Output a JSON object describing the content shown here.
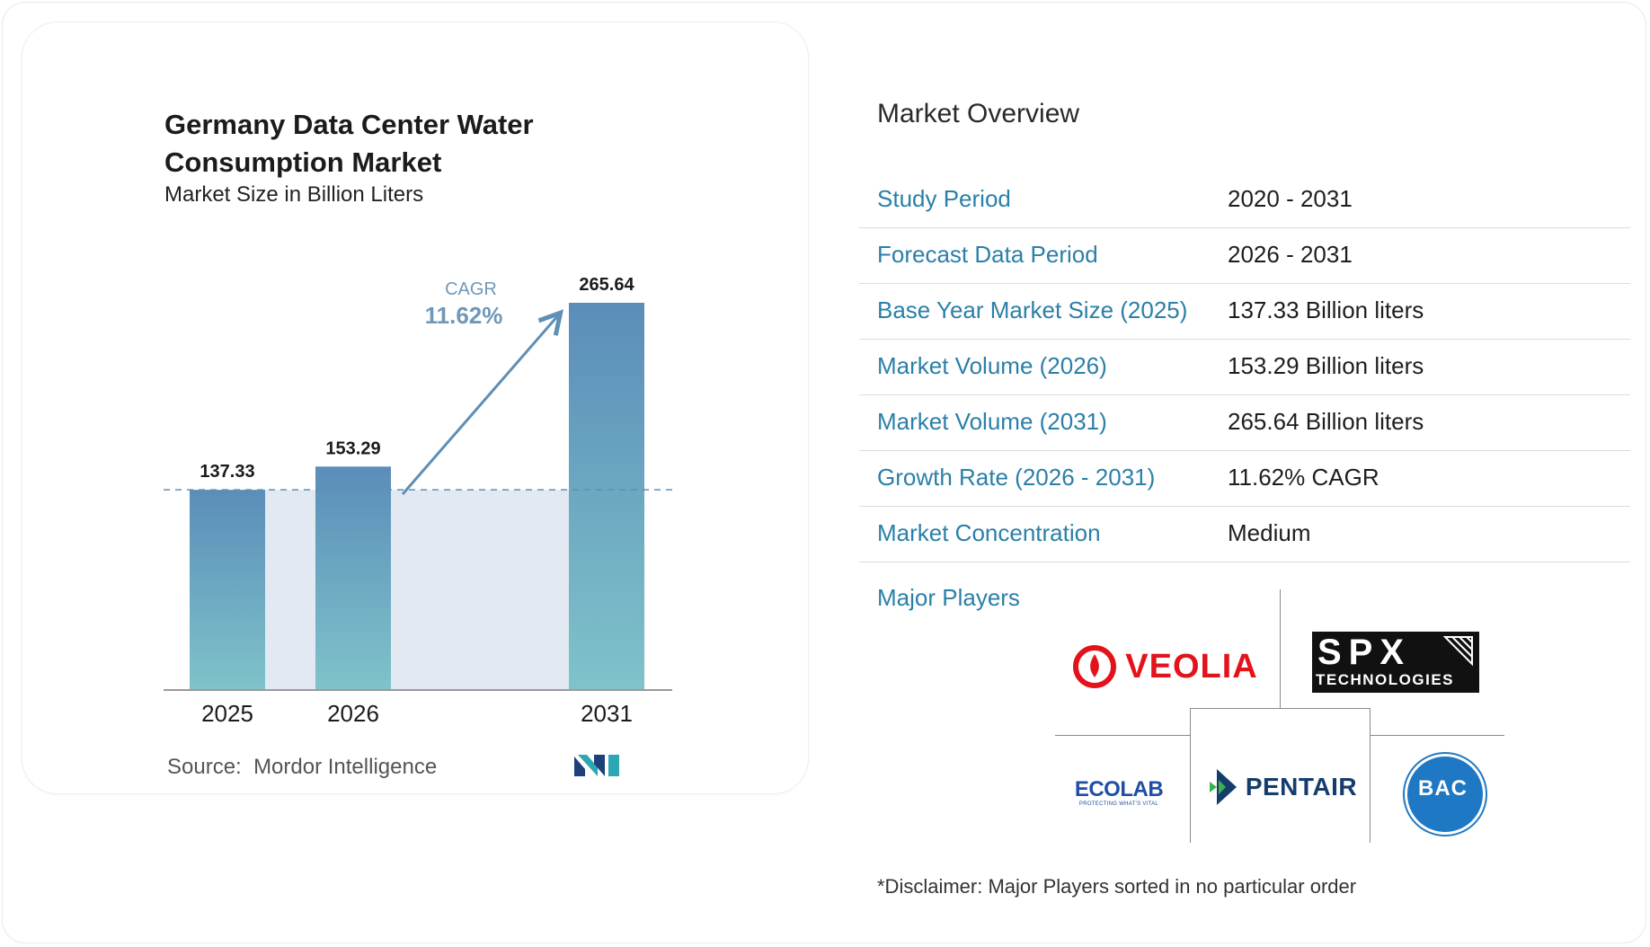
{
  "chart_data": {
    "type": "bar",
    "title": "Germany Data Center Water Consumption Market",
    "subtitle": "Market Size in Billion Liters",
    "categories": [
      "2025",
      "2026",
      "2031"
    ],
    "values": [
      137.33,
      153.29,
      265.64
    ],
    "value_labels": [
      "137.33",
      "153.29",
      "265.64"
    ],
    "ylim": [
      0,
      265.64
    ],
    "grid": false,
    "baseline_reference": 137.33,
    "annotation": {
      "label": "CAGR",
      "value": "11.62%"
    },
    "colors": {
      "bar_top": "#5b8db9",
      "bar_bottom": "#7fc3ca",
      "area": "#e2e9f2",
      "arrow": "#5e8fb5",
      "axis": "#9a9a9a"
    }
  },
  "source": {
    "label": "Source:",
    "name": "Mordor Intelligence"
  },
  "overview": {
    "title": "Market Overview",
    "rows": [
      {
        "label": "Study Period",
        "value": "2020 - 2031"
      },
      {
        "label": "Forecast Data Period",
        "value": "2026 - 2031"
      },
      {
        "label": "Base Year Market Size (2025)",
        "value": "137.33 Billion liters"
      },
      {
        "label": "Market Volume (2026)",
        "value": "153.29 Billion liters"
      },
      {
        "label": "Market Volume (2031)",
        "value": "265.64 Billion liters"
      },
      {
        "label": "Growth Rate (2026 - 2031)",
        "value": "11.62% CAGR"
      },
      {
        "label": "Market Concentration",
        "value": "Medium"
      }
    ]
  },
  "players": {
    "label": "Major Players",
    "logos": {
      "veolia": "VEOLIA",
      "spx_main": "SPX",
      "spx_sub": "TECHNOLOGIES",
      "ecolab_main": "ECOLAB",
      "ecolab_sub": "PROTECTING WHAT'S VITAL",
      "pentair": "PENTAIR",
      "bac": "BAC"
    }
  },
  "disclaimer": "*Disclaimer: Major Players sorted in no particular order"
}
